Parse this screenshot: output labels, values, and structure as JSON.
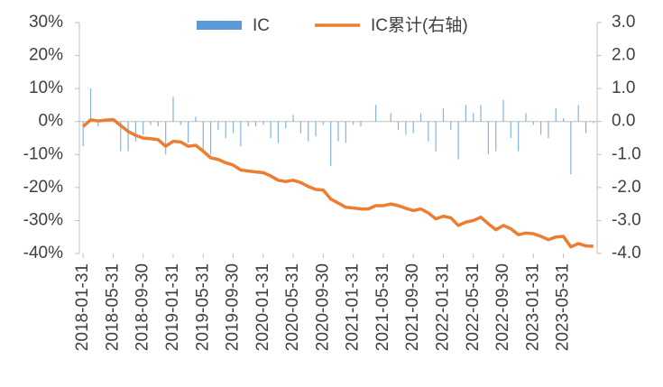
{
  "chart_data": {
    "type": "bar_line",
    "categories": [
      "2018-01-31",
      null,
      null,
      null,
      "2018-05-31",
      null,
      null,
      null,
      "2018-09-30",
      null,
      null,
      null,
      "2019-01-31",
      null,
      null,
      null,
      "2019-05-31",
      null,
      null,
      null,
      "2019-09-30",
      null,
      null,
      null,
      "2020-01-31",
      null,
      null,
      null,
      "2020-05-31",
      null,
      null,
      null,
      "2020-09-30",
      null,
      null,
      null,
      "2021-01-31",
      null,
      null,
      null,
      "2021-05-31",
      null,
      null,
      null,
      "2021-09-30",
      null,
      null,
      null,
      "2022-01-31",
      null,
      null,
      null,
      "2022-05-31",
      null,
      null,
      null,
      "2022-09-30",
      null,
      null,
      null,
      "2023-01-31",
      null,
      null,
      null,
      "2023-05-31",
      null,
      null,
      null,
      null
    ],
    "series": [
      {
        "name": "IC",
        "color": "#5b9bd5",
        "axis": "y",
        "values": [
          -7.5,
          10,
          -1.5,
          1,
          1,
          -9,
          -9,
          -6,
          -4,
          -1,
          -1.5,
          -10,
          7.5,
          -1,
          -6.5,
          1.5,
          -9,
          -10,
          -2.5,
          -5,
          -3.5,
          -7.5,
          -1.5,
          -1.5,
          -1,
          -5,
          -6.5,
          -2,
          2,
          -3.5,
          -6,
          -4.5,
          -1,
          -13.5,
          -6,
          -6.5,
          -1,
          -1.5,
          0,
          5,
          0,
          2.5,
          -2.5,
          -4,
          -3.5,
          2.5,
          -6,
          -9,
          4,
          -2.5,
          -11.5,
          5,
          2.5,
          5,
          -10,
          -9,
          6.5,
          -5,
          -9,
          2.5,
          -1,
          -4,
          -5,
          4,
          1,
          -16,
          5,
          -3.5,
          -0.5
        ]
      },
      {
        "name": "IC累计(右轴)",
        "color": "#ed7d31",
        "axis": "y2",
        "values": [
          -0.15,
          0.05,
          0.02,
          0.04,
          0.06,
          -0.12,
          -0.3,
          -0.42,
          -0.5,
          -0.52,
          -0.55,
          -0.75,
          -0.6,
          -0.62,
          -0.75,
          -0.72,
          -0.9,
          -1.1,
          -1.15,
          -1.25,
          -1.32,
          -1.47,
          -1.5,
          -1.53,
          -1.55,
          -1.65,
          -1.78,
          -1.82,
          -1.78,
          -1.85,
          -1.97,
          -2.06,
          -2.08,
          -2.35,
          -2.47,
          -2.6,
          -2.62,
          -2.65,
          -2.65,
          -2.55,
          -2.55,
          -2.5,
          -2.55,
          -2.63,
          -2.7,
          -2.65,
          -2.77,
          -2.95,
          -2.87,
          -2.92,
          -3.15,
          -3.05,
          -3.0,
          -2.9,
          -3.1,
          -3.28,
          -3.15,
          -3.25,
          -3.43,
          -3.38,
          -3.4,
          -3.48,
          -3.58,
          -3.5,
          -3.48,
          -3.8,
          -3.7,
          -3.77,
          -3.78
        ]
      }
    ],
    "ylim": [
      -40,
      30
    ],
    "yticks": [
      {
        "value": -40,
        "label": "-40%"
      },
      {
        "value": -30,
        "label": "-30%"
      },
      {
        "value": -20,
        "label": "-20%"
      },
      {
        "value": -10,
        "label": "-10%"
      },
      {
        "value": 0,
        "label": "0%"
      },
      {
        "value": 10,
        "label": "10%"
      },
      {
        "value": 20,
        "label": "20%"
      },
      {
        "value": 30,
        "label": "30%"
      }
    ],
    "y2lim": [
      -4,
      3
    ],
    "y2ticks": [
      {
        "value": -4,
        "label": "-4.0"
      },
      {
        "value": -3,
        "label": "-3.0"
      },
      {
        "value": -2,
        "label": "-2.0"
      },
      {
        "value": -1,
        "label": "-1.0"
      },
      {
        "value": 0,
        "label": "0.0"
      },
      {
        "value": 1,
        "label": "1.0"
      },
      {
        "value": 2,
        "label": "2.0"
      },
      {
        "value": 3,
        "label": "3.0"
      }
    ],
    "legend": "top"
  }
}
